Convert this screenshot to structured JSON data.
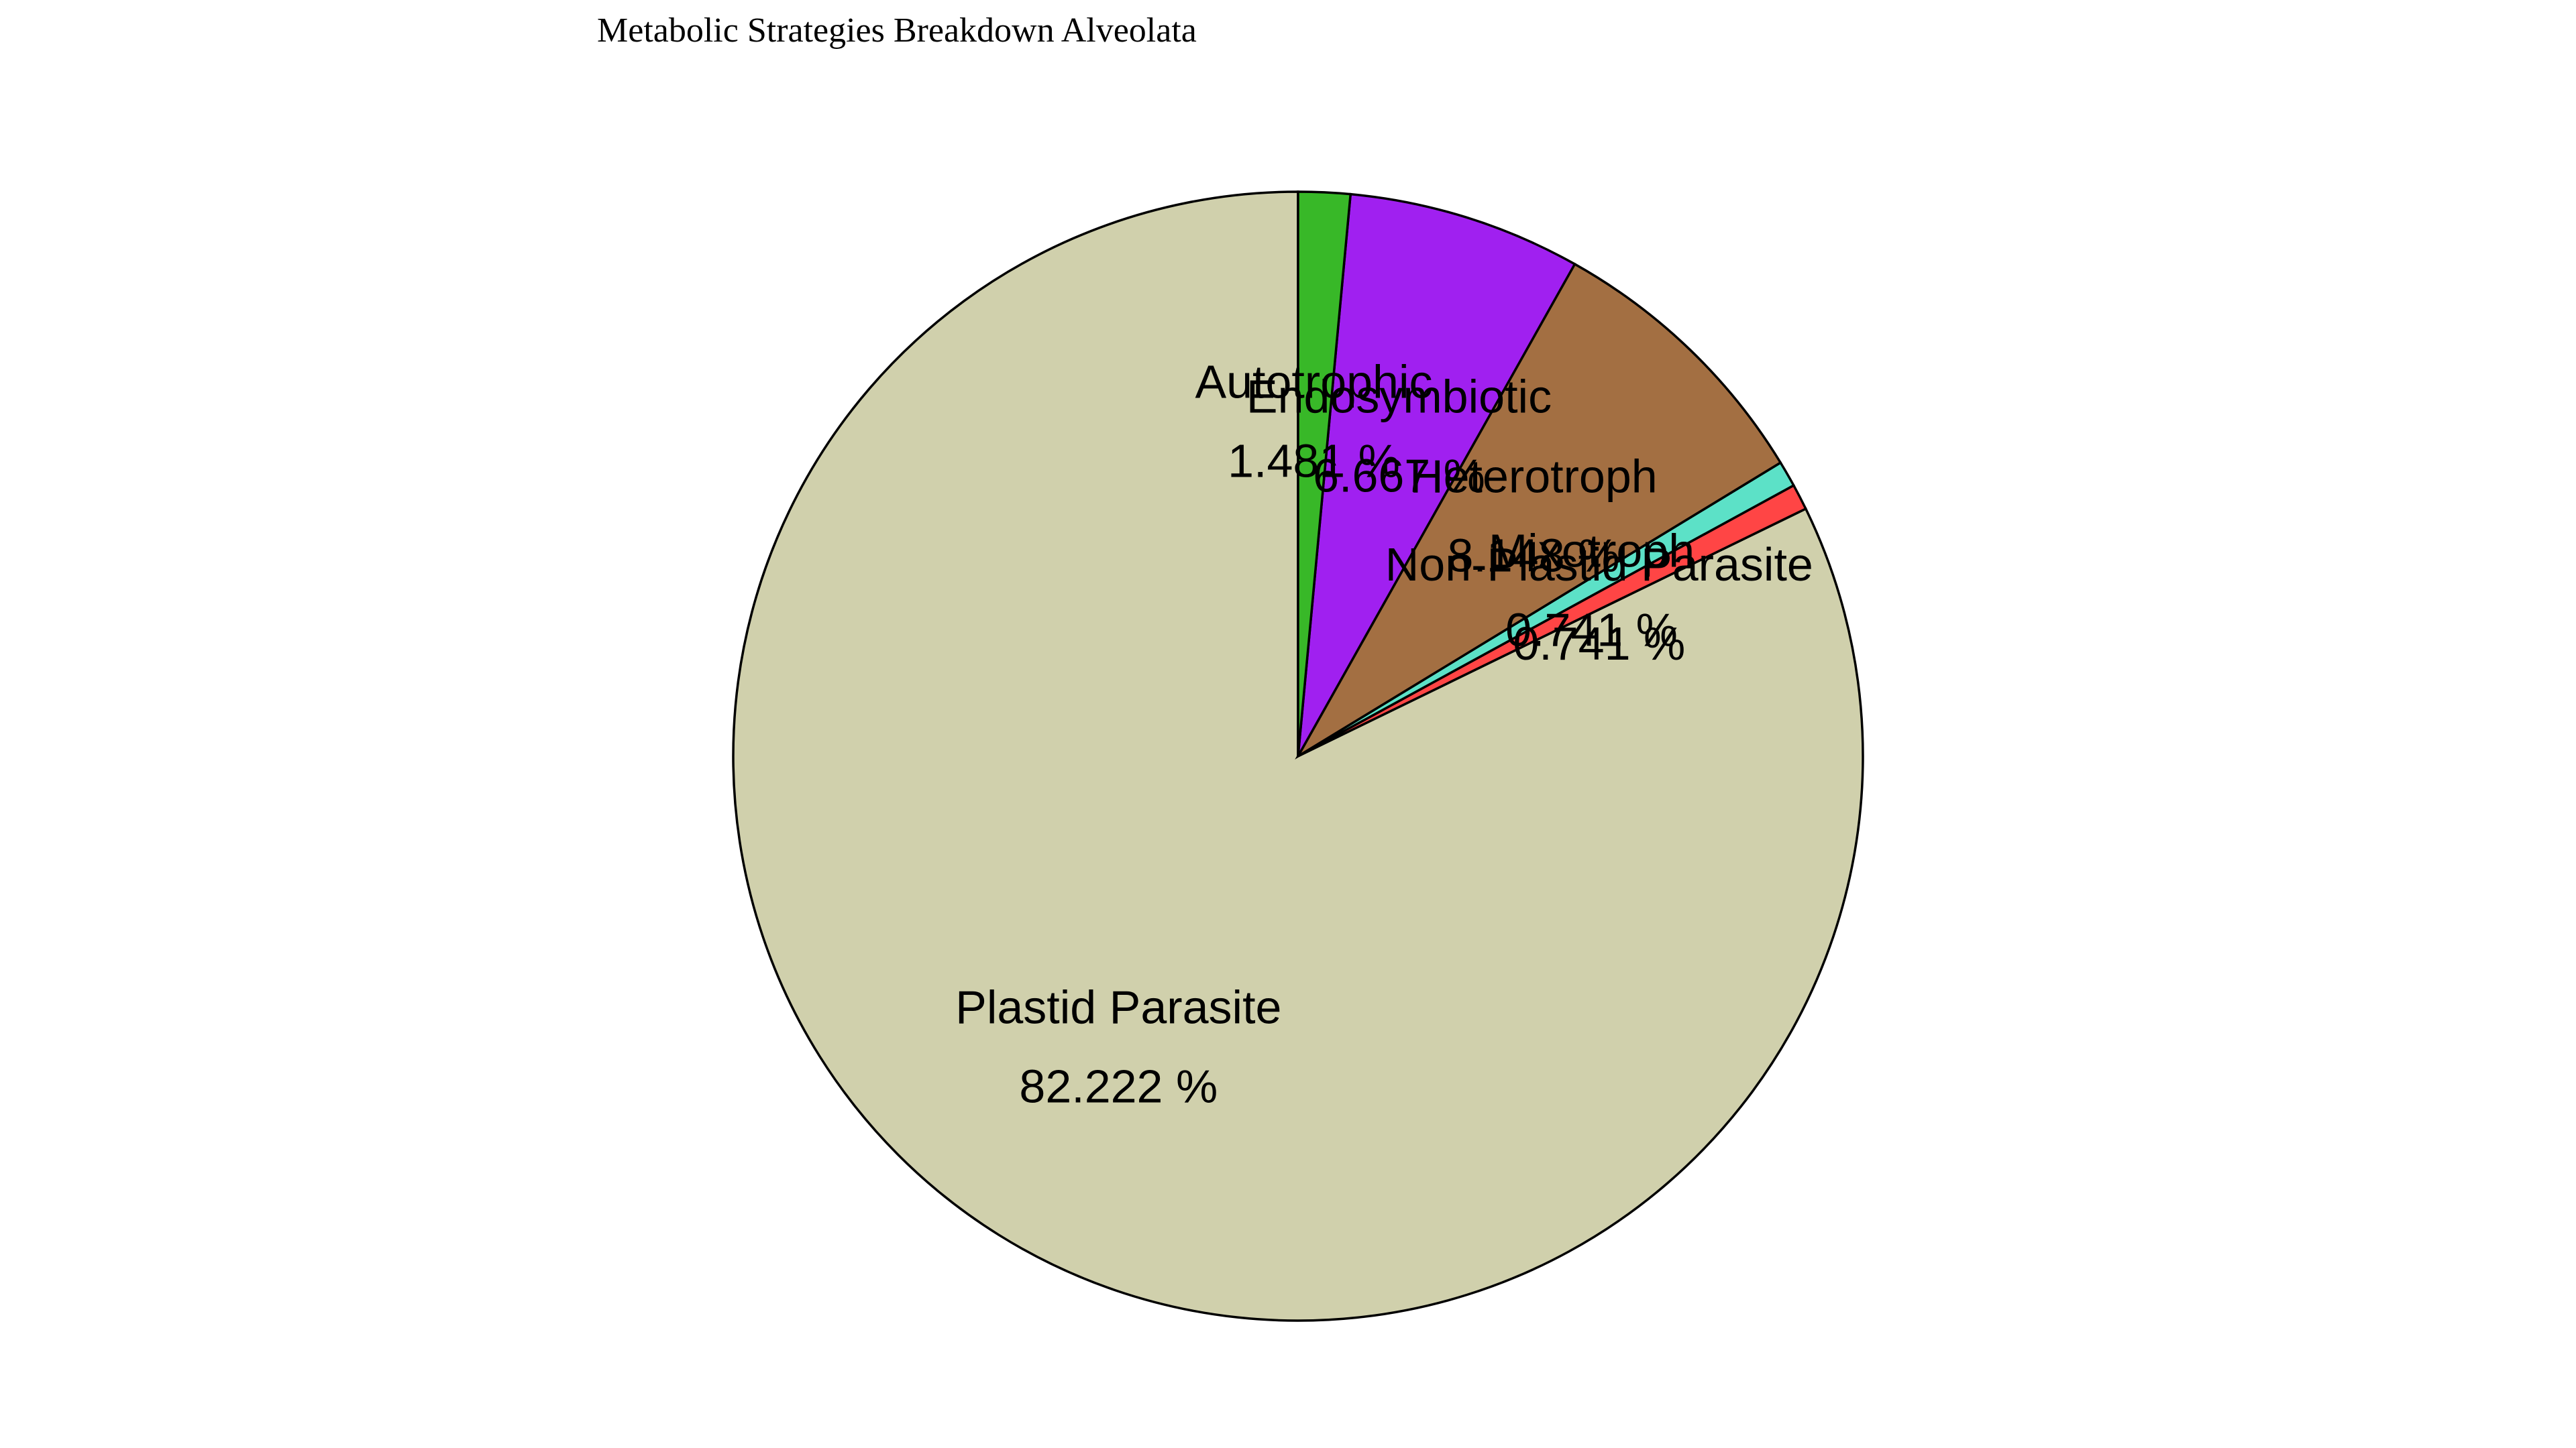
{
  "chart_data": {
    "type": "pie",
    "title": "Metabolic Strategies Breakdown Alveolata",
    "start": "12 o'clock",
    "direction": "clockwise",
    "edge_color": "#000000",
    "slices": [
      {
        "label": "Plastid Parasite",
        "value": 82.222,
        "pct_label": "82.222 %",
        "color": "#d0d0ac"
      },
      {
        "label": "Non-Plastid Parasite",
        "value": 0.741,
        "pct_label": "0.741 %",
        "color": "#ff4545"
      },
      {
        "label": "Mixotroph",
        "value": 0.741,
        "pct_label": "0.741 %",
        "color": "#5ce1c7"
      },
      {
        "label": "Heterotroph",
        "value": 8.148,
        "pct_label": "8.148 %",
        "color": "#a36f42"
      },
      {
        "label": "Endosymbiotic",
        "value": 6.667,
        "pct_label": "6.667 %",
        "color": "#a020f0"
      },
      {
        "label": "Autotrophic",
        "value": 1.481,
        "pct_label": "1.481 %",
        "color": "#38b828"
      }
    ]
  }
}
